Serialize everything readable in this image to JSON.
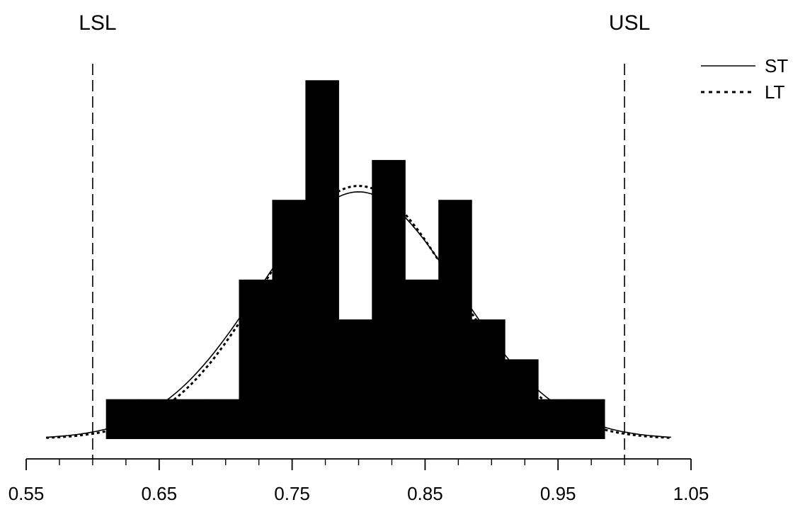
{
  "chart_data": {
    "type": "bar",
    "title": "",
    "xlabel": "",
    "ylabel": "",
    "xlim": [
      0.55,
      1.05
    ],
    "ylim": [
      0,
      9
    ],
    "grid": false,
    "legend_placement": "top-right",
    "x_ticks": [
      {
        "value": 0.55,
        "label": "0.55"
      },
      {
        "value": 0.65,
        "label": "0.65"
      },
      {
        "value": 0.75,
        "label": "0.75"
      },
      {
        "value": 0.85,
        "label": "0.85"
      },
      {
        "value": 0.95,
        "label": "0.95"
      },
      {
        "value": 1.05,
        "label": "1.05"
      }
    ],
    "histogram": {
      "bin_width": 0.025,
      "bins": [
        {
          "start": 0.61,
          "count": 1
        },
        {
          "start": 0.635,
          "count": 1
        },
        {
          "start": 0.66,
          "count": 1
        },
        {
          "start": 0.685,
          "count": 1
        },
        {
          "start": 0.71,
          "count": 4
        },
        {
          "start": 0.735,
          "count": 6
        },
        {
          "start": 0.76,
          "count": 9
        },
        {
          "start": 0.785,
          "count": 3
        },
        {
          "start": 0.81,
          "count": 7
        },
        {
          "start": 0.835,
          "count": 4
        },
        {
          "start": 0.86,
          "count": 6
        },
        {
          "start": 0.885,
          "count": 3
        },
        {
          "start": 0.91,
          "count": 2
        },
        {
          "start": 0.935,
          "count": 1
        },
        {
          "start": 0.96,
          "count": 1
        }
      ],
      "color": "#000000"
    },
    "spec_limits": [
      {
        "label": "LSL",
        "value": 0.6
      },
      {
        "label": "USL",
        "value": 1.0
      }
    ],
    "series": [
      {
        "name": "ST",
        "kind": "normal-curve",
        "mean": 0.8,
        "sigma": 0.075,
        "peak": 6.2,
        "x_range": [
          0.565,
          1.035
        ],
        "style": "solid"
      },
      {
        "name": "LT",
        "kind": "normal-curve",
        "mean": 0.8,
        "sigma": 0.072,
        "peak": 6.35,
        "x_range": [
          0.565,
          1.035
        ],
        "style": "dotted"
      }
    ]
  }
}
